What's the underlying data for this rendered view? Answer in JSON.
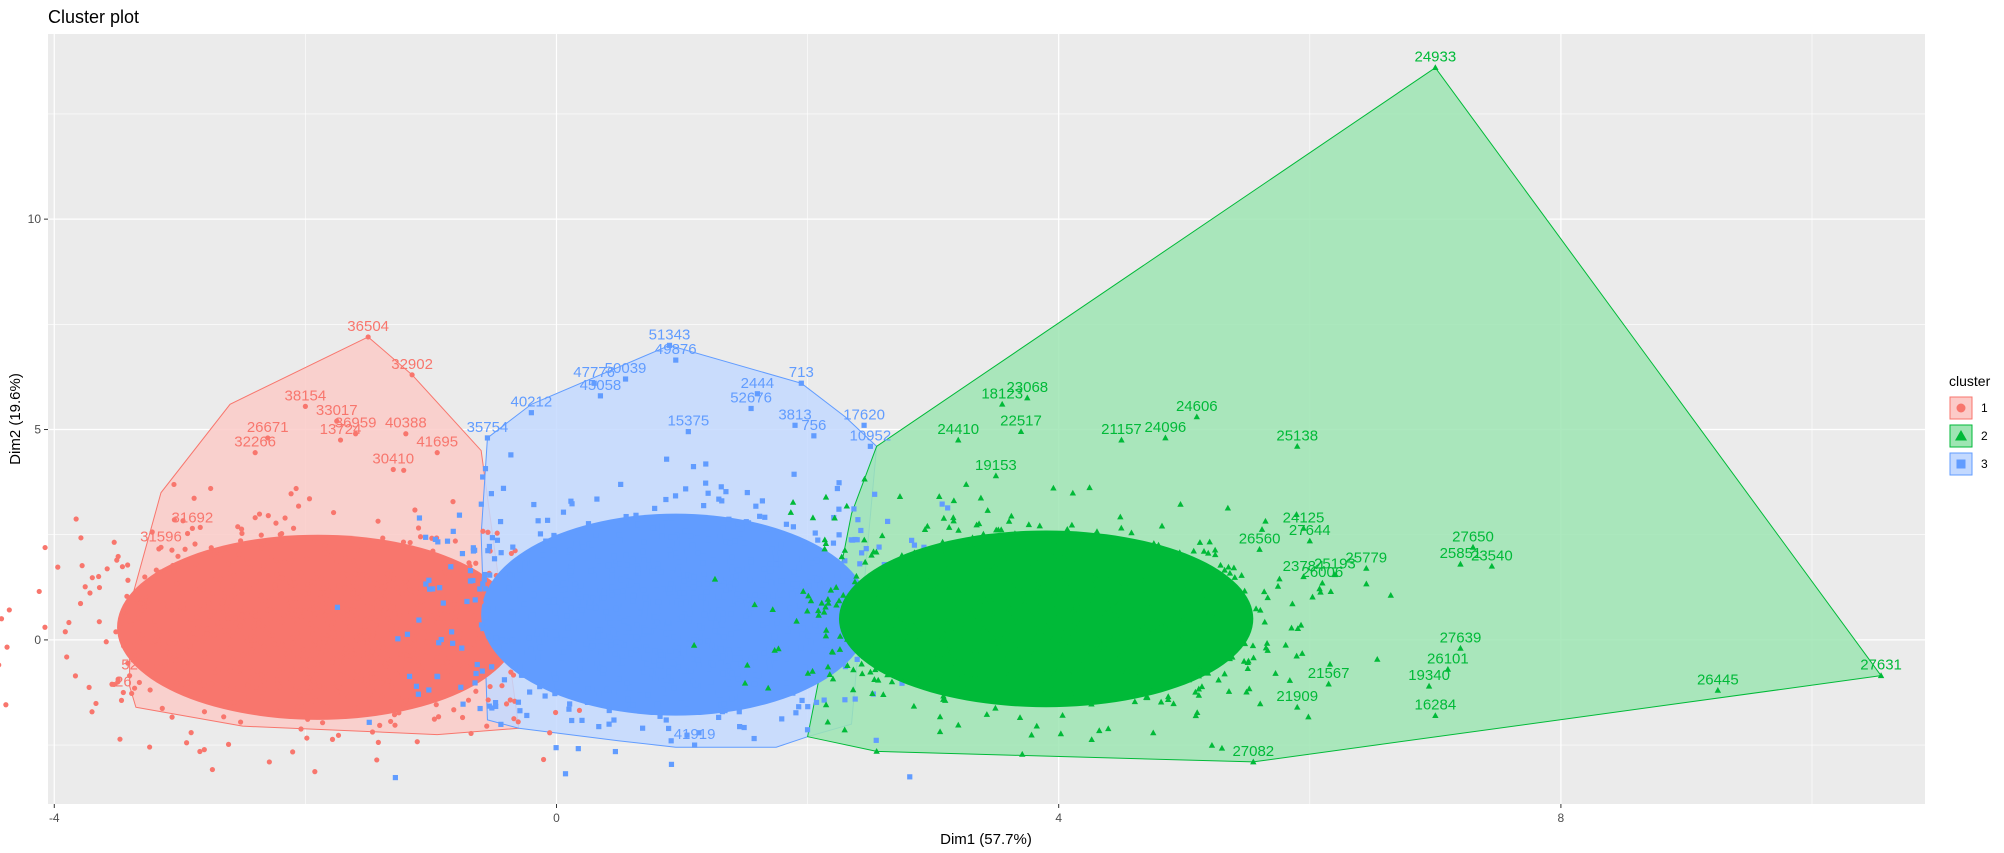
{
  "chart_data": {
    "type": "scatter",
    "title": "Cluster plot",
    "xlabel": "Dim1 (57.7%)",
    "ylabel": "Dim2 (19.6%)",
    "xlim": [
      -4.05,
      10.9
    ],
    "ylim": [
      -3.9,
      14.4
    ],
    "x_ticks": [
      -4,
      0,
      4,
      8
    ],
    "x_tick_labels": [
      "-4",
      "0",
      "4",
      "8"
    ],
    "y_ticks": [
      0,
      5,
      10
    ],
    "y_tick_labels": [
      "0",
      "5",
      "10"
    ],
    "grid": true,
    "legend": {
      "title": "cluster",
      "position": "right",
      "entries": [
        {
          "label": "1",
          "shape": "circle",
          "color": "#F8766D"
        },
        {
          "label": "2",
          "shape": "triangle",
          "color": "#00BA38"
        },
        {
          "label": "3",
          "shape": "square",
          "color": "#619CFF"
        }
      ]
    },
    "series": [
      {
        "name": "1",
        "color": "#F8766D",
        "marker": "circle",
        "hull": [
          [
            -3.35,
            -1.6
          ],
          [
            -2.5,
            -2.05
          ],
          [
            -0.95,
            -2.25
          ],
          [
            -0.3,
            -2.1
          ],
          [
            -0.6,
            4.5
          ],
          [
            -1.15,
            6.3
          ],
          [
            -1.5,
            7.2
          ],
          [
            -2.6,
            5.6
          ],
          [
            -3.15,
            3.5
          ],
          [
            -3.4,
            0.8
          ],
          [
            -3.4,
            -1.1
          ]
        ],
        "blob": {
          "cx": -1.9,
          "cy": 0.3,
          "rx": 1.6,
          "ry": 2.2
        },
        "points": [
          {
            "x": -1.5,
            "y": 7.2,
            "label": "36504"
          },
          {
            "x": -1.15,
            "y": 6.3,
            "label": "32902"
          },
          {
            "x": -2.0,
            "y": 5.55,
            "label": "38154"
          },
          {
            "x": -1.75,
            "y": 5.2,
            "label": "33017"
          },
          {
            "x": -2.3,
            "y": 4.8,
            "label": "26671"
          },
          {
            "x": -1.6,
            "y": 4.9,
            "label": "36959"
          },
          {
            "x": -1.2,
            "y": 4.9,
            "label": "40388"
          },
          {
            "x": -1.72,
            "y": 4.75,
            "label": "13724"
          },
          {
            "x": -0.95,
            "y": 4.45,
            "label": "41695"
          },
          {
            "x": -2.4,
            "y": 4.45,
            "label": "32266"
          },
          {
            "x": -1.3,
            "y": 4.05,
            "label": "30410"
          },
          {
            "x": -2.9,
            "y": 2.65,
            "label": "31692"
          },
          {
            "x": -3.15,
            "y": 2.2,
            "label": "31596"
          },
          {
            "x": -3.3,
            "y": 0.7,
            "label": "38"
          },
          {
            "x": -3.4,
            "y": -0.85,
            "label": "52"
          },
          {
            "x": -3.45,
            "y": -1.25,
            "label": "26"
          },
          {
            "x": -2.6,
            "y": -0.2,
            "label": ""
          },
          {
            "x": -2.0,
            "y": 1.1,
            "label": ""
          },
          {
            "x": -1.1,
            "y": -0.6,
            "label": ""
          },
          {
            "x": -0.6,
            "y": 0.9,
            "label": ""
          }
        ]
      },
      {
        "name": "3",
        "color": "#619CFF",
        "marker": "square",
        "hull": [
          [
            -0.55,
            -1.9
          ],
          [
            -0.3,
            -2.1
          ],
          [
            0.5,
            -2.4
          ],
          [
            0.95,
            -2.55
          ],
          [
            1.75,
            -2.55
          ],
          [
            2.0,
            -2.3
          ],
          [
            2.35,
            -2.0
          ],
          [
            2.55,
            4.6
          ],
          [
            2.3,
            5.3
          ],
          [
            1.95,
            6.1
          ],
          [
            0.9,
            7.0
          ],
          [
            -0.2,
            5.6
          ],
          [
            -0.55,
            4.8
          ],
          [
            -0.6,
            2.5
          ]
        ],
        "blob": {
          "cx": 0.95,
          "cy": 0.6,
          "rx": 1.55,
          "ry": 2.4
        },
        "points": [
          {
            "x": 0.9,
            "y": 7.0,
            "label": "51343"
          },
          {
            "x": 0.95,
            "y": 6.65,
            "label": "49876"
          },
          {
            "x": 1.95,
            "y": 6.1,
            "label": "713"
          },
          {
            "x": 0.55,
            "y": 6.2,
            "label": "50039"
          },
          {
            "x": 0.3,
            "y": 6.1,
            "label": "47776"
          },
          {
            "x": 0.35,
            "y": 5.8,
            "label": "45058"
          },
          {
            "x": 1.6,
            "y": 5.85,
            "label": "2444"
          },
          {
            "x": 1.55,
            "y": 5.5,
            "label": "52676"
          },
          {
            "x": -0.2,
            "y": 5.4,
            "label": "40212"
          },
          {
            "x": 1.9,
            "y": 5.1,
            "label": "3813"
          },
          {
            "x": -0.55,
            "y": 4.8,
            "label": "35754"
          },
          {
            "x": 2.45,
            "y": 5.1,
            "label": "17620"
          },
          {
            "x": 1.05,
            "y": 4.95,
            "label": "15375"
          },
          {
            "x": 2.05,
            "y": 4.85,
            "label": "756"
          },
          {
            "x": 2.5,
            "y": 4.6,
            "label": "10952"
          },
          {
            "x": 1.1,
            "y": -2.5,
            "label": "41919"
          },
          {
            "x": 0.2,
            "y": 0.5,
            "label": ""
          },
          {
            "x": 1.4,
            "y": -0.8,
            "label": ""
          },
          {
            "x": 0.7,
            "y": 1.9,
            "label": ""
          }
        ]
      },
      {
        "name": "2",
        "color": "#00BA38",
        "marker": "triangle",
        "hull": [
          [
            2.0,
            -2.3
          ],
          [
            2.55,
            -2.65
          ],
          [
            5.55,
            -2.9
          ],
          [
            10.55,
            -0.85
          ],
          [
            7.0,
            13.6
          ],
          [
            2.55,
            4.6
          ],
          [
            2.35,
            3.0
          ]
        ],
        "blob": {
          "cx": 3.9,
          "cy": 0.5,
          "rx": 1.65,
          "ry": 2.1
        },
        "points": [
          {
            "x": 7.0,
            "y": 13.6,
            "label": "24933"
          },
          {
            "x": 10.55,
            "y": -0.85,
            "label": "27631"
          },
          {
            "x": 9.25,
            "y": -1.2,
            "label": "26445"
          },
          {
            "x": 7.0,
            "y": -1.8,
            "label": "16284"
          },
          {
            "x": 6.95,
            "y": -1.1,
            "label": "19340"
          },
          {
            "x": 7.2,
            "y": -0.2,
            "label": "27639"
          },
          {
            "x": 7.1,
            "y": -0.7,
            "label": "26101"
          },
          {
            "x": 7.3,
            "y": 2.2,
            "label": "27650"
          },
          {
            "x": 7.2,
            "y": 1.8,
            "label": "25851"
          },
          {
            "x": 7.45,
            "y": 1.75,
            "label": "23540"
          },
          {
            "x": 6.45,
            "y": 1.7,
            "label": "25779"
          },
          {
            "x": 6.2,
            "y": 1.55,
            "label": "25193"
          },
          {
            "x": 6.1,
            "y": 1.35,
            "label": "26006"
          },
          {
            "x": 5.95,
            "y": 2.65,
            "label": "24125"
          },
          {
            "x": 6.0,
            "y": 2.35,
            "label": "27644"
          },
          {
            "x": 5.9,
            "y": 4.6,
            "label": "25138"
          },
          {
            "x": 5.1,
            "y": 5.3,
            "label": "24606"
          },
          {
            "x": 4.85,
            "y": 4.8,
            "label": "24096"
          },
          {
            "x": 4.5,
            "y": 4.75,
            "label": "21157"
          },
          {
            "x": 3.75,
            "y": 5.75,
            "label": "23068"
          },
          {
            "x": 3.55,
            "y": 5.6,
            "label": "18123"
          },
          {
            "x": 3.7,
            "y": 4.95,
            "label": "22517"
          },
          {
            "x": 3.2,
            "y": 4.75,
            "label": "24410"
          },
          {
            "x": 3.5,
            "y": 3.9,
            "label": "19153"
          },
          {
            "x": 5.95,
            "y": 1.5,
            "label": "23784"
          },
          {
            "x": 5.6,
            "y": 2.15,
            "label": "26560"
          },
          {
            "x": 5.55,
            "y": -2.9,
            "label": "27082"
          },
          {
            "x": 5.9,
            "y": -1.6,
            "label": "21909"
          },
          {
            "x": 6.15,
            "y": -1.05,
            "label": "21567"
          },
          {
            "x": 2.55,
            "y": -2.65,
            "label": ""
          },
          {
            "x": 4.5,
            "y": -0.8,
            "label": ""
          },
          {
            "x": 3.3,
            "y": 0.6,
            "label": ""
          },
          {
            "x": 5.0,
            "y": 1.2,
            "label": ""
          }
        ]
      }
    ]
  }
}
